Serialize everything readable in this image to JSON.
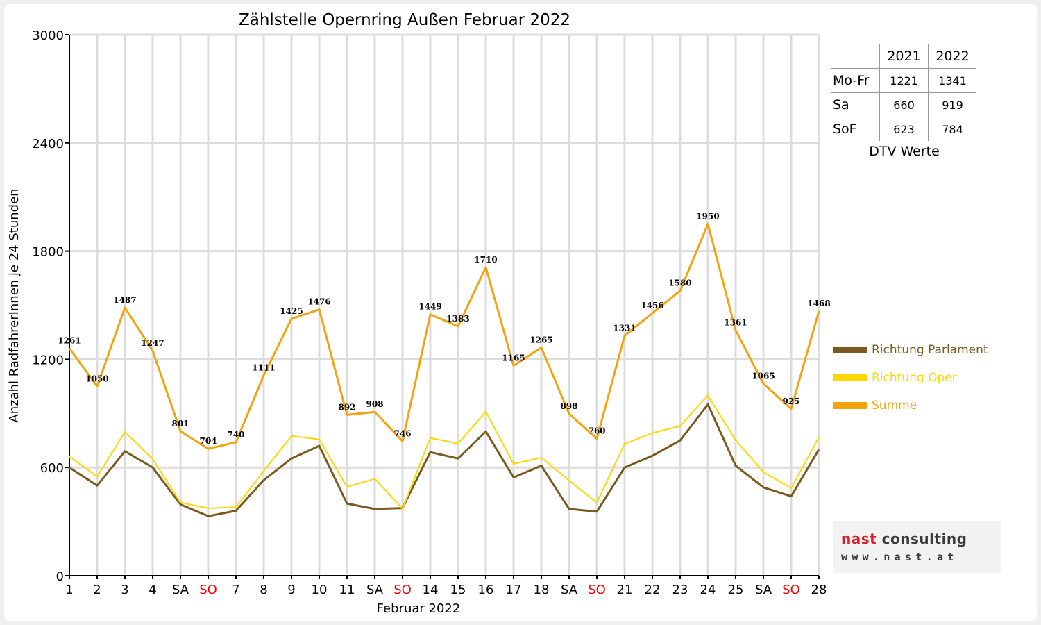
{
  "chart_data": {
    "type": "line",
    "title": "Zählstelle Opernring Außen Februar 2022",
    "xlabel": "Februar 2022",
    "ylabel": "Anzahl RadfahrerInnen je 24 Stunden",
    "ylim": [
      0,
      3000
    ],
    "yticks": [
      "0",
      "600",
      "1200",
      "1800",
      "2400",
      "3000"
    ],
    "categories": [
      "1",
      "2",
      "3",
      "4",
      "SA",
      "SO",
      "7",
      "8",
      "9",
      "10",
      "11",
      "SA",
      "SO",
      "14",
      "15",
      "16",
      "17",
      "18",
      "SA",
      "SO",
      "21",
      "22",
      "23",
      "24",
      "25",
      "SA",
      "SO",
      "28"
    ],
    "weekend_sunday_color": "#ff0000",
    "grid": true,
    "legend_position": "right",
    "series": [
      {
        "name": "Richtung Parlament",
        "color": "#7b5a20",
        "values": [
          600,
          500,
          690,
          600,
          395,
          330,
          360,
          530,
          650,
          720,
          400,
          370,
          375,
          685,
          650,
          800,
          545,
          610,
          370,
          355,
          600,
          665,
          750,
          950,
          610,
          490,
          440,
          700
        ]
      },
      {
        "name": "Richtung Oper",
        "color": "#ffd700",
        "values": [
          661,
          550,
          797,
          647,
          406,
          374,
          380,
          581,
          775,
          756,
          492,
          538,
          371,
          764,
          733,
          910,
          620,
          655,
          528,
          405,
          731,
          791,
          830,
          1000,
          751,
          575,
          485,
          768
        ]
      },
      {
        "name": "Summe",
        "color": "#f2a40f",
        "values": [
          1261,
          1050,
          1487,
          1247,
          801,
          704,
          740,
          1111,
          1425,
          1476,
          892,
          908,
          746,
          1449,
          1383,
          1710,
          1165,
          1265,
          898,
          760,
          1331,
          1456,
          1580,
          1950,
          1361,
          1065,
          925,
          1468
        ]
      }
    ]
  },
  "dtv_table": {
    "years": [
      "2021",
      "2022"
    ],
    "rows": [
      {
        "label": "Mo-Fr",
        "v2021": "1221",
        "v2022": "1341"
      },
      {
        "label": "Sa",
        "v2021": "660",
        "v2022": "919"
      },
      {
        "label": "SoF",
        "v2021": "623",
        "v2022": "784"
      }
    ],
    "caption": "DTV Werte"
  },
  "logo": {
    "word1": "nast",
    "word2": "consulting",
    "url": "www.nast.at"
  }
}
